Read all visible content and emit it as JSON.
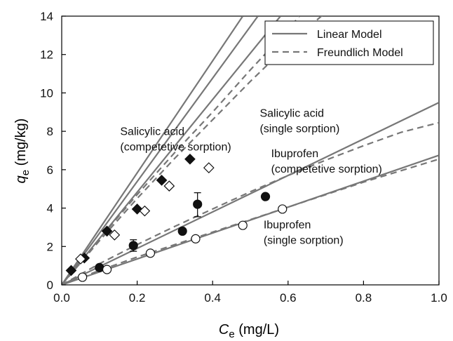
{
  "chart_data": {
    "type": "scatter",
    "xlabel": {
      "var": "C",
      "sub": "e",
      "unit": " (mg/L)"
    },
    "ylabel": {
      "var": "q",
      "sub": "e",
      "unit": " (mg/kg)"
    },
    "xlim": [
      0,
      1.0
    ],
    "ylim": [
      0,
      14
    ],
    "x_ticks": [
      0.0,
      0.2,
      0.4,
      0.6,
      0.8,
      1.0
    ],
    "x_tick_labels": [
      "0.0",
      "0.2",
      "0.4",
      "0.6",
      "0.8",
      "1.0"
    ],
    "y_ticks": [
      0,
      2,
      4,
      6,
      8,
      10,
      12,
      14
    ],
    "y_tick_labels": [
      "0",
      "2",
      "4",
      "6",
      "8",
      "10",
      "12",
      "14"
    ],
    "grid": false,
    "legend": {
      "placement": "top-right",
      "entries": [
        {
          "label": "Linear Model",
          "style": "solid"
        },
        {
          "label": "Freundlich Model",
          "style": "dashed"
        }
      ]
    },
    "annotations": [
      {
        "id": "sa-comp",
        "lines": [
          "Salicylic acid",
          "(competetive sorption)"
        ]
      },
      {
        "id": "sa-single",
        "lines": [
          "Salicylic acid",
          "(single sorption)"
        ]
      },
      {
        "id": "ibu-comp",
        "lines": [
          "Ibuprofen",
          "(competetive sorption)"
        ]
      },
      {
        "id": "ibu-single",
        "lines": [
          "Ibuprofen",
          "(single sorption)"
        ]
      }
    ],
    "series": [
      {
        "id": "sa-comp",
        "marker": "diamond-filled",
        "points": [
          [
            0.025,
            0.75
          ],
          [
            0.06,
            1.4
          ],
          [
            0.12,
            2.8
          ],
          [
            0.2,
            3.95
          ],
          [
            0.265,
            5.45
          ],
          [
            0.34,
            6.55
          ]
        ],
        "linear": [
          [
            0,
            0
          ],
          [
            0.48,
            14
          ]
        ],
        "linear_alt": [
          [
            0,
            0
          ],
          [
            0.52,
            14
          ]
        ],
        "freundlich": [
          [
            0,
            0
          ],
          [
            0.1,
            2.4
          ],
          [
            0.2,
            4.7
          ],
          [
            0.3,
            6.9
          ],
          [
            0.4,
            9.0
          ],
          [
            0.5,
            11.2
          ],
          [
            0.6,
            13.3
          ],
          [
            0.63,
            14
          ]
        ]
      },
      {
        "id": "sa-single",
        "marker": "diamond-open",
        "points": [
          [
            0.05,
            1.35
          ],
          [
            0.14,
            2.6
          ],
          [
            0.22,
            3.85
          ],
          [
            0.285,
            5.15
          ],
          [
            0.39,
            6.1
          ]
        ],
        "linear": [
          [
            0,
            0
          ],
          [
            0.58,
            14
          ]
        ],
        "freundlich": [
          [
            0,
            0
          ],
          [
            0.1,
            2.3
          ],
          [
            0.2,
            4.5
          ],
          [
            0.3,
            6.6
          ],
          [
            0.4,
            8.6
          ],
          [
            0.5,
            10.6
          ],
          [
            0.6,
            12.5
          ],
          [
            0.7,
            14.2
          ]
        ]
      },
      {
        "id": "ibu-comp",
        "marker": "circle-filled",
        "points": [
          [
            0.1,
            0.9
          ],
          [
            0.19,
            2.05
          ],
          [
            0.32,
            2.8
          ],
          [
            0.36,
            4.2
          ],
          [
            0.54,
            4.6
          ]
        ],
        "error": [
          [
            0.36,
            3.55,
            4.8
          ],
          [
            0.19,
            1.75,
            2.35
          ]
        ],
        "linear": [
          [
            0,
            0
          ],
          [
            1.0,
            9.5
          ]
        ],
        "freundlich": [
          [
            0,
            0
          ],
          [
            0.1,
            1.1
          ],
          [
            0.2,
            2.1
          ],
          [
            0.3,
            3.05
          ],
          [
            0.4,
            3.95
          ],
          [
            0.5,
            4.85
          ],
          [
            0.6,
            5.7
          ],
          [
            0.7,
            6.5
          ],
          [
            0.8,
            7.25
          ],
          [
            0.9,
            7.95
          ],
          [
            1.0,
            8.45
          ]
        ]
      },
      {
        "id": "ibu-single",
        "marker": "circle-open",
        "points": [
          [
            0.055,
            0.4
          ],
          [
            0.12,
            0.8
          ],
          [
            0.235,
            1.65
          ],
          [
            0.355,
            2.4
          ],
          [
            0.48,
            3.1
          ],
          [
            0.585,
            3.95
          ]
        ],
        "linear": [
          [
            0,
            0
          ],
          [
            1.0,
            6.75
          ]
        ],
        "freundlich": [
          [
            0,
            0
          ],
          [
            0.1,
            0.75
          ],
          [
            0.2,
            1.45
          ],
          [
            0.3,
            2.1
          ],
          [
            0.4,
            2.75
          ],
          [
            0.5,
            3.4
          ],
          [
            0.6,
            4.05
          ],
          [
            0.7,
            4.7
          ],
          [
            0.8,
            5.35
          ],
          [
            0.9,
            5.95
          ],
          [
            1.0,
            6.55
          ]
        ]
      }
    ]
  }
}
